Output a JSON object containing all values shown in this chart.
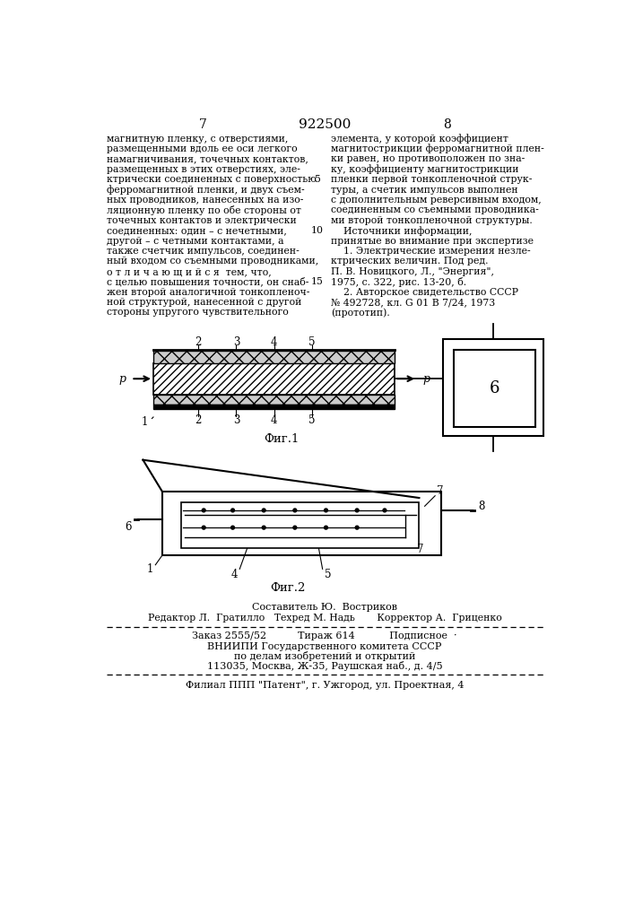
{
  "page_number_left": "7",
  "page_number_center": "922500",
  "page_number_right": "8",
  "left_column_text": [
    "магнитную пленку, с отверстиями,",
    "размещенными вдоль ее оси легкого",
    "намагничивания, точечных контактов,",
    "размещенных в этих отверстиях, эле-",
    "ктрически соединенных с поверхностью",
    "ферромагнитной пленки, и двух съем-",
    "ных проводников, нанесенных на изо-",
    "ляционную пленку по обе стороны от",
    "точечных контактов и электрически",
    "соединенных: один – с нечетными,",
    "другой – с четными контактами, а",
    "также счетчик импульсов, соединен-",
    "ный входом со съемными проводниками,",
    "о т л и ч а ю щ и й с я  тем, что,",
    "с целью повышения точности, он снаб-",
    "жен второй аналогичной тонкопленоч-",
    "ной структурой, нанесенной с другой",
    "стороны упругого чувствительного"
  ],
  "line_number_map": {
    "4": "5",
    "9": "10",
    "14": "15"
  },
  "right_column_text": [
    "элемента, у которой коэффициент",
    "магнитострикции ферромагнитной плен-",
    "ки равен, но противоположен по зна-",
    "ку, коэффициенту магнитострикции",
    "пленки первой тонкопленочной струк-",
    "туры, а счетик импульсов выполнен",
    "с дополнительным реверсивным входом,",
    "соединенным со съемными проводника-",
    "ми второй тонкопленочной структуры.",
    "    Источники информации,",
    "принятые во внимание при экспертизе",
    "    1. Электрические измерения незле-",
    "ктрических величин. Под ред.",
    "П. В. Новицкого, Л., \"Энергия\",",
    "1975, с. 322, рис. 13-20, б.",
    "    2. Авторское свидетельство СССР",
    "№ 492728, кл. G 01 B 7/24, 1973",
    "(прототип)."
  ],
  "fig1_caption": "Фиг.1",
  "fig2_caption": "Фиг.2",
  "footer_line1": "Составитель Ю.  Востриков",
  "footer_line2": "Редактор Л.  Гратилло   Техред М. Надь       Корректор А.  Гриценко",
  "footer_line3": "Заказ 2555/52          Тираж 614           Подписное  ·",
  "footer_line4": "ВНИИПИ Государственного комитета СССР",
  "footer_line5": "по делам изобретений и открытий",
  "footer_line6": "113035, Москва, Ж-35, Раушская наб., д. 4/5",
  "footer_line7": "Филиал ППП \"Патент\", г. Ужгород, ул. Проектная, 4",
  "bg_color": "#ffffff",
  "text_color": "#000000"
}
